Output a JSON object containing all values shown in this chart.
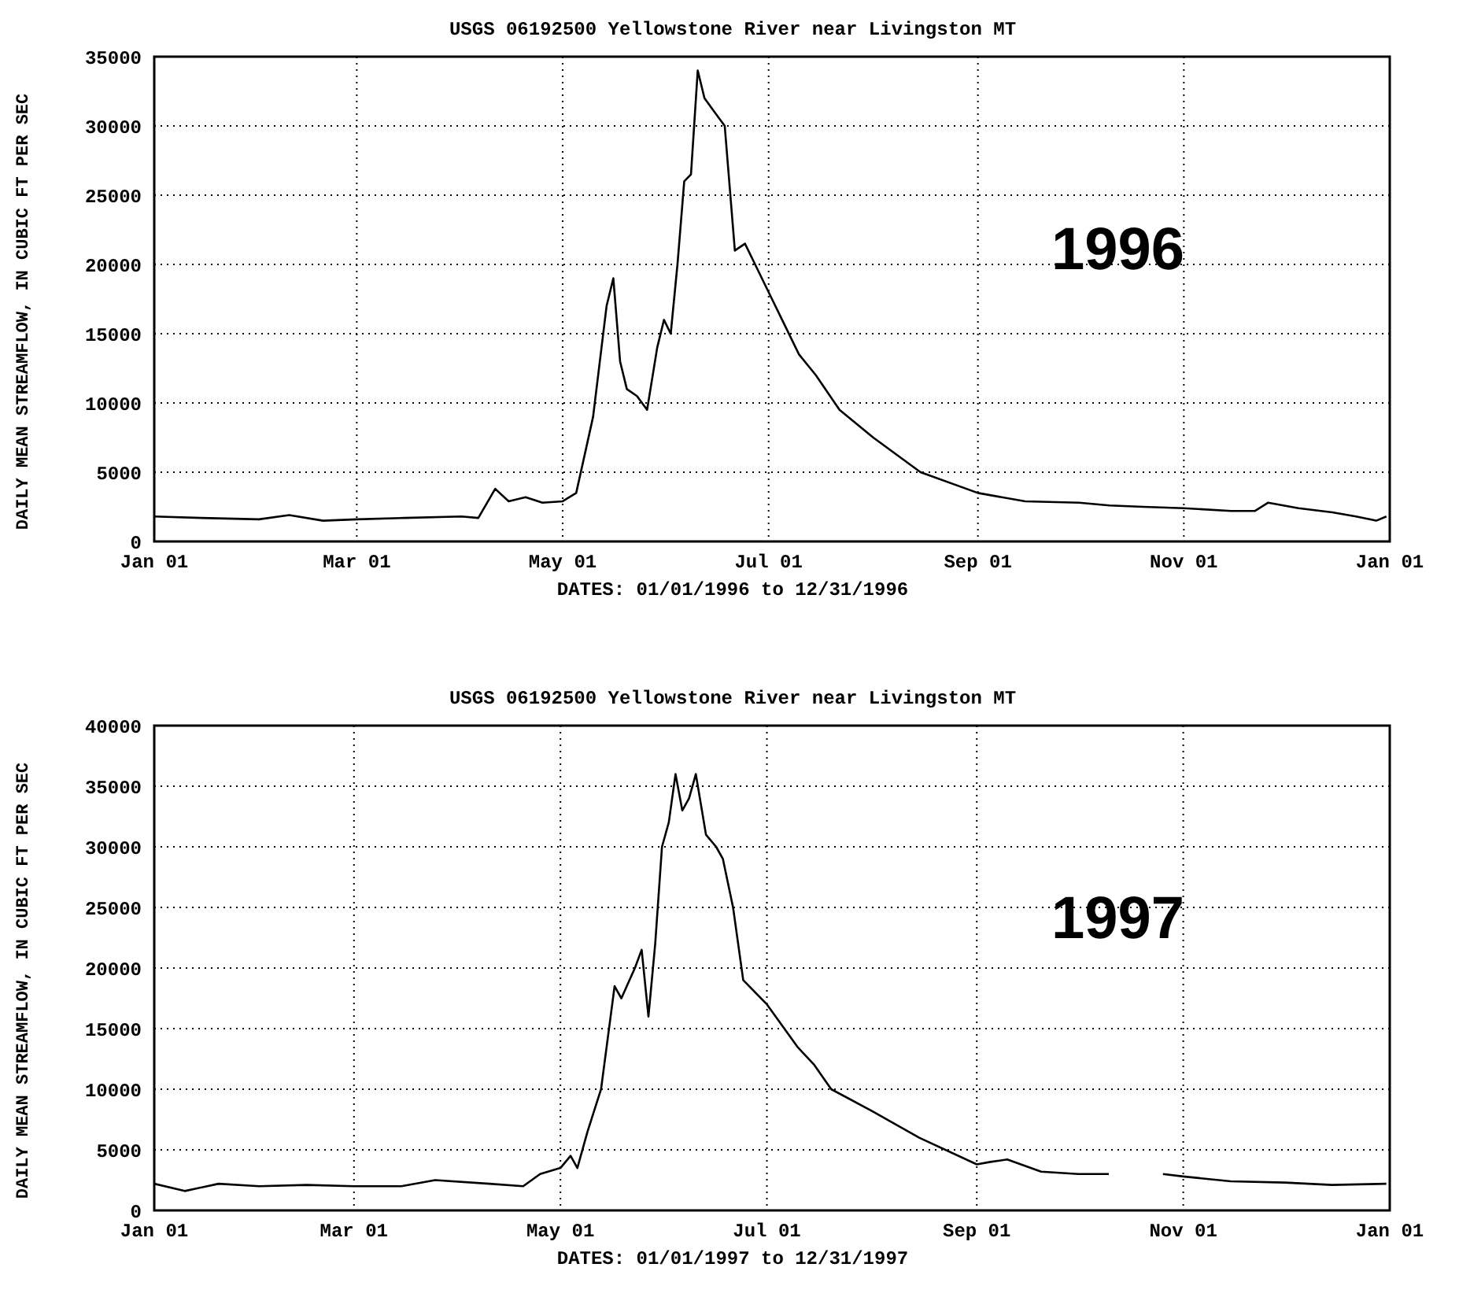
{
  "chart_data": [
    {
      "type": "line",
      "title": "USGS 06192500 Yellowstone River near Livingston MT",
      "xlabel": "DATES: 01/01/1996 to 12/31/1996",
      "ylabel": "DAILY MEAN STREAMFLOW, IN CUBIC FT PER SEC",
      "annotations": [
        "1996"
      ],
      "x": [
        "1996-01-01",
        "1996-01-15",
        "1996-02-01",
        "1996-02-10",
        "1996-02-20",
        "1996-03-01",
        "1996-03-15",
        "1996-04-01",
        "1996-04-06",
        "1996-04-11",
        "1996-04-15",
        "1996-04-20",
        "1996-04-25",
        "1996-05-01",
        "1996-05-05",
        "1996-05-10",
        "1996-05-14",
        "1996-05-16",
        "1996-05-18",
        "1996-05-20",
        "1996-05-23",
        "1996-05-26",
        "1996-05-29",
        "1996-05-31",
        "1996-06-02",
        "1996-06-04",
        "1996-06-06",
        "1996-06-08",
        "1996-06-10",
        "1996-06-12",
        "1996-06-15",
        "1996-06-18",
        "1996-06-19",
        "1996-06-21",
        "1996-06-24",
        "1996-06-27",
        "1996-07-02",
        "1996-07-05",
        "1996-07-10",
        "1996-07-15",
        "1996-07-22",
        "1996-08-01",
        "1996-08-15",
        "1996-09-01",
        "1996-09-15",
        "1996-10-01",
        "1996-10-10",
        "1996-10-20",
        "1996-11-01",
        "1996-11-15",
        "1996-11-22",
        "1996-11-26",
        "1996-12-05",
        "1996-12-15",
        "1996-12-22",
        "1996-12-28",
        "1996-12-31"
      ],
      "series": [
        {
          "color": "#000000",
          "values": [
            1800,
            1700,
            1600,
            1900,
            1500,
            1600,
            1700,
            1800,
            1700,
            3800,
            2900,
            3200,
            2800,
            2900,
            3500,
            9000,
            17000,
            19000,
            13000,
            11000,
            10500,
            9500,
            14000,
            16000,
            15000,
            20000,
            26000,
            26500,
            34000,
            32000,
            31000,
            30000,
            27000,
            21000,
            21500,
            20000,
            17500,
            16000,
            13500,
            12000,
            9500,
            7500,
            5000,
            3500,
            2900,
            2800,
            2600,
            2500,
            2400,
            2200,
            2200,
            2800,
            2400,
            2100,
            1800,
            1500,
            1800
          ]
        }
      ],
      "xlim": [
        "1996-01-01",
        "1997-01-01"
      ],
      "xticks": [
        {
          "value": "1996-01-01",
          "label": "Jan 01"
        },
        {
          "value": "1996-03-01",
          "label": "Mar 01"
        },
        {
          "value": "1996-05-01",
          "label": "May 01"
        },
        {
          "value": "1996-07-01",
          "label": "Jul 01"
        },
        {
          "value": "1996-09-01",
          "label": "Sep 01"
        },
        {
          "value": "1996-11-01",
          "label": "Nov 01"
        },
        {
          "value": "1997-01-01",
          "label": "Jan 01"
        }
      ],
      "ylim": [
        0,
        35000
      ],
      "yticks": [
        0,
        5000,
        10000,
        15000,
        20000,
        25000,
        30000,
        35000
      ],
      "grid": true,
      "line_style": "solid"
    },
    {
      "type": "line",
      "title": "USGS 06192500 Yellowstone River near Livingston MT",
      "xlabel": "DATES: 01/01/1997 to 12/31/1997",
      "ylabel": "DAILY MEAN STREAMFLOW, IN CUBIC FT PER SEC",
      "annotations": [
        "1997"
      ],
      "x": [
        "1997-01-01",
        "1997-01-10",
        "1997-01-20",
        "1997-02-01",
        "1997-02-15",
        "1997-03-01",
        "1997-03-15",
        "1997-03-25",
        "1997-04-10",
        "1997-04-20",
        "1997-04-25",
        "1997-05-01",
        "1997-05-04",
        "1997-05-06",
        "1997-05-09",
        "1997-05-13",
        "1997-05-17",
        "1997-05-19",
        "1997-05-23",
        "1997-05-25",
        "1997-05-27",
        "1997-05-29",
        "1997-05-31",
        "1997-06-02",
        "1997-06-04",
        "1997-06-06",
        "1997-06-08",
        "1997-06-10",
        "1997-06-13",
        "1997-06-16",
        "1997-06-18",
        "1997-06-21",
        "1997-06-24",
        "1997-07-01",
        "1997-07-10",
        "1997-07-15",
        "1997-07-20",
        "1997-08-01",
        "1997-08-15",
        "1997-09-01",
        "1997-09-05",
        "1997-09-10",
        "1997-09-20",
        "1997-10-01",
        "1997-10-10",
        "1997-10-18",
        "1997-10-26",
        "1997-11-01",
        "1997-11-15",
        "1997-12-01",
        "1997-12-15",
        "1997-12-31"
      ],
      "series": [
        {
          "color": "#000000",
          "values": [
            2200,
            1600,
            2200,
            2000,
            2100,
            2000,
            2000,
            2500,
            2200,
            2000,
            3000,
            3500,
            4500,
            3500,
            6500,
            10000,
            18500,
            17500,
            20000,
            21500,
            16000,
            22000,
            30000,
            32000,
            36000,
            33000,
            34000,
            36000,
            31000,
            30000,
            29000,
            25000,
            19000,
            17000,
            13500,
            12000,
            10000,
            8200,
            6000,
            3800,
            4000,
            4200,
            3200,
            3000,
            3000,
            null,
            3000,
            2800,
            2400,
            2300,
            2100,
            2200
          ]
        }
      ],
      "xlim": [
        "1997-01-01",
        "1998-01-01"
      ],
      "xticks": [
        {
          "value": "1997-01-01",
          "label": "Jan 01"
        },
        {
          "value": "1997-03-01",
          "label": "Mar 01"
        },
        {
          "value": "1997-05-01",
          "label": "May 01"
        },
        {
          "value": "1997-07-01",
          "label": "Jul 01"
        },
        {
          "value": "1997-09-01",
          "label": "Sep 01"
        },
        {
          "value": "1997-11-01",
          "label": "Nov 01"
        },
        {
          "value": "1998-01-01",
          "label": "Jan 01"
        }
      ],
      "ylim": [
        0,
        40000
      ],
      "yticks": [
        0,
        5000,
        10000,
        15000,
        20000,
        25000,
        30000,
        35000,
        40000
      ],
      "grid": true,
      "line_style": "solid"
    }
  ]
}
